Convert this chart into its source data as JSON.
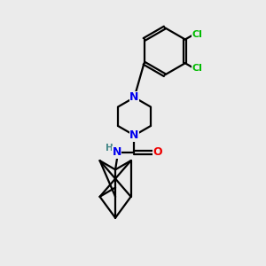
{
  "background_color": "#ebebeb",
  "bond_color": "#000000",
  "nitrogen_color": "#0000ee",
  "oxygen_color": "#ee0000",
  "chlorine_color": "#00bb00",
  "hydrogen_color": "#448888",
  "line_width": 1.6,
  "figsize": [
    3.0,
    3.0
  ],
  "dpi": 100,
  "xlim": [
    0,
    10
  ],
  "ylim": [
    0,
    10
  ]
}
